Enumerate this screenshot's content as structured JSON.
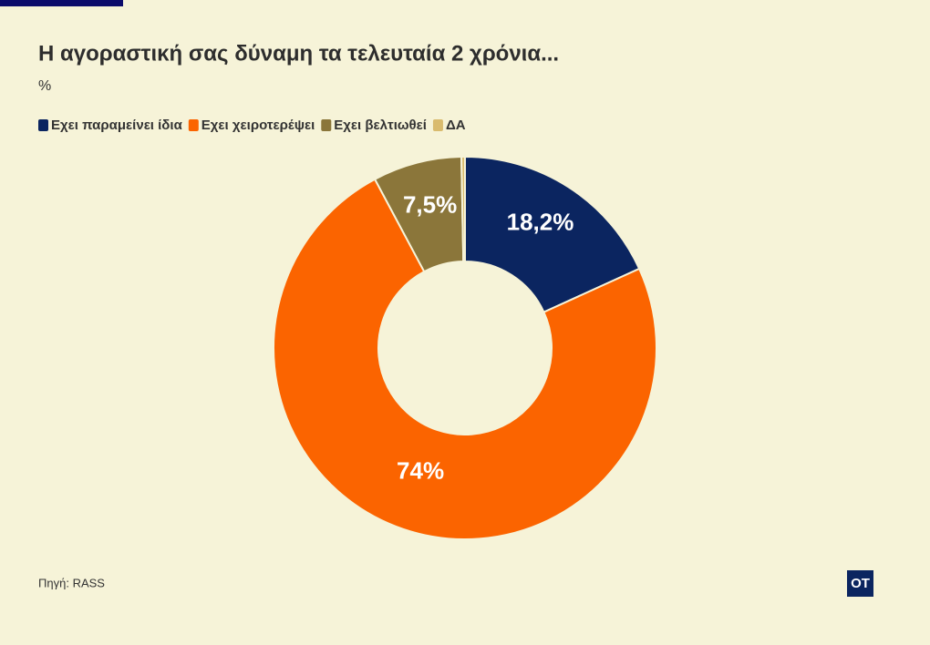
{
  "chart_data": {
    "type": "donut",
    "title": "Η αγοραστική σας δύναμη τα τελευταία 2 χρόνια...",
    "subtitle": "%",
    "categories": [
      "Εχει παραμείνει ίδια",
      "Εχει χειροτερέψει",
      "Εχει βελτιωθεί",
      "ΔΑ"
    ],
    "values": [
      18.2,
      74,
      7.5,
      0.3
    ],
    "value_labels": [
      "18,2%",
      "74%",
      "7,5%",
      null
    ],
    "colors": [
      "#0b2560",
      "#fb6400",
      "#8b763a",
      "#d9bb6e"
    ],
    "source": "Πηγή: RASS",
    "logo": "OT"
  }
}
